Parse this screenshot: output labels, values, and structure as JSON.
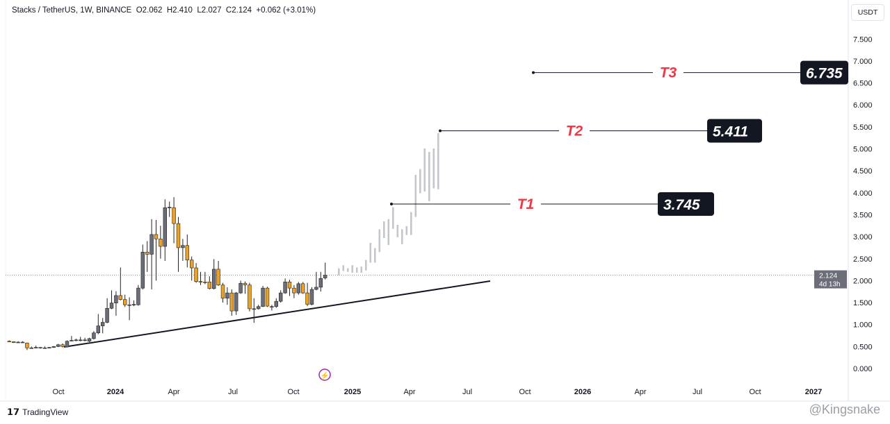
{
  "header": {
    "symbol": "Stacks / TetherUS, 1W, BINANCE",
    "open": "O2.062",
    "high": "H2.410",
    "low": "L2.027",
    "close": "C2.124",
    "change": "+0.062 (+3.01%)"
  },
  "currency_button": "USDT",
  "footer": {
    "brand": "TradingView",
    "watermark": "@Kingsnake"
  },
  "colors": {
    "up": "#6b6e78",
    "down": "#f0a020",
    "ghost": "#c3c6cc",
    "target": "#f23645",
    "label_bg": "#131722"
  },
  "chart_data": {
    "type": "candlestick",
    "ylim": [
      -0.3,
      7.8
    ],
    "yticks": [
      "0.000",
      "0.500",
      "1.000",
      "1.500",
      "2.000",
      "2.500",
      "3.000",
      "3.500",
      "4.000",
      "4.500",
      "5.000",
      "5.500",
      "6.000",
      "6.500",
      "7.000",
      "7.500"
    ],
    "xticks": [
      {
        "label": "Oct",
        "bold": false
      },
      {
        "label": "2024",
        "bold": true
      },
      {
        "label": "Apr",
        "bold": false
      },
      {
        "label": "Jul",
        "bold": false
      },
      {
        "label": "Oct",
        "bold": false
      },
      {
        "label": "2025",
        "bold": true
      },
      {
        "label": "Apr",
        "bold": false
      },
      {
        "label": "Jul",
        "bold": false
      },
      {
        "label": "Oct",
        "bold": false
      },
      {
        "label": "2026",
        "bold": true
      },
      {
        "label": "Apr",
        "bold": false
      },
      {
        "label": "Jul",
        "bold": false
      },
      {
        "label": "Oct",
        "bold": false
      },
      {
        "label": "2027",
        "bold": true
      }
    ],
    "last_price": {
      "value": "2.124",
      "countdown": "4d 13h"
    },
    "candles_ohlc": [
      [
        0.62,
        0.64,
        0.6,
        0.61
      ],
      [
        0.61,
        0.62,
        0.58,
        0.59
      ],
      [
        0.59,
        0.62,
        0.58,
        0.6
      ],
      [
        0.6,
        0.62,
        0.59,
        0.6
      ],
      [
        0.58,
        0.59,
        0.42,
        0.47
      ],
      [
        0.47,
        0.5,
        0.45,
        0.47
      ],
      [
        0.47,
        0.52,
        0.46,
        0.48
      ],
      [
        0.48,
        0.49,
        0.45,
        0.47
      ],
      [
        0.47,
        0.5,
        0.45,
        0.47
      ],
      [
        0.47,
        0.49,
        0.46,
        0.48
      ],
      [
        0.48,
        0.51,
        0.47,
        0.5
      ],
      [
        0.5,
        0.56,
        0.49,
        0.54
      ],
      [
        0.54,
        0.57,
        0.48,
        0.5
      ],
      [
        0.49,
        0.64,
        0.48,
        0.62
      ],
      [
        0.63,
        0.74,
        0.62,
        0.64
      ],
      [
        0.64,
        0.68,
        0.62,
        0.65
      ],
      [
        0.64,
        0.72,
        0.62,
        0.65
      ],
      [
        0.65,
        0.7,
        0.62,
        0.65
      ],
      [
        0.62,
        0.7,
        0.6,
        0.68
      ],
      [
        0.68,
        0.85,
        0.66,
        0.81
      ],
      [
        0.81,
        1.24,
        0.78,
        0.97
      ],
      [
        0.97,
        1.15,
        0.8,
        1.05
      ],
      [
        1.05,
        1.6,
        1.03,
        1.37
      ],
      [
        1.37,
        1.78,
        1.35,
        1.49
      ],
      [
        1.49,
        1.76,
        1.2,
        1.66
      ],
      [
        1.66,
        2.3,
        1.55,
        1.57
      ],
      [
        1.57,
        1.68,
        1.4,
        1.45
      ],
      [
        1.45,
        1.62,
        1.1,
        1.45
      ],
      [
        1.45,
        1.55,
        1.42,
        1.46
      ],
      [
        1.45,
        1.9,
        1.43,
        1.83
      ],
      [
        1.83,
        2.82,
        1.8,
        2.65
      ],
      [
        2.65,
        2.9,
        2.2,
        2.6
      ],
      [
        2.6,
        3.4,
        1.8,
        3.05
      ],
      [
        3.05,
        3.38,
        2.0,
        2.95
      ],
      [
        2.95,
        3.25,
        2.5,
        2.78
      ],
      [
        2.78,
        3.85,
        2.45,
        3.66
      ],
      [
        3.66,
        3.8,
        3.45,
        3.67
      ],
      [
        3.66,
        3.9,
        2.85,
        3.3
      ],
      [
        3.3,
        3.45,
        2.2,
        2.75
      ],
      [
        2.75,
        2.95,
        2.45,
        2.8
      ],
      [
        2.8,
        3.05,
        2.3,
        2.47
      ],
      [
        2.47,
        2.55,
        2.0,
        2.29
      ],
      [
        2.29,
        2.4,
        1.95,
        1.98
      ],
      [
        1.98,
        2.2,
        1.9,
        1.97
      ],
      [
        1.97,
        2.2,
        1.92,
        1.96
      ],
      [
        1.97,
        2.1,
        1.8,
        1.82
      ],
      [
        1.82,
        2.49,
        1.8,
        2.26
      ],
      [
        2.26,
        2.45,
        1.88,
        1.9
      ],
      [
        1.9,
        1.95,
        1.5,
        1.6
      ],
      [
        1.6,
        1.85,
        1.45,
        1.72
      ],
      [
        1.72,
        1.8,
        1.2,
        1.31
      ],
      [
        1.31,
        1.74,
        1.22,
        1.72
      ],
      [
        1.72,
        2.0,
        1.7,
        1.94
      ],
      [
        1.94,
        1.98,
        1.7,
        1.9
      ],
      [
        1.9,
        1.95,
        1.3,
        1.36
      ],
      [
        1.36,
        1.6,
        1.04,
        1.36
      ],
      [
        1.36,
        1.45,
        1.34,
        1.41
      ],
      [
        1.41,
        1.88,
        1.4,
        1.83
      ],
      [
        1.83,
        1.86,
        1.4,
        1.42
      ],
      [
        1.41,
        1.45,
        1.32,
        1.41
      ],
      [
        1.41,
        1.6,
        1.38,
        1.53
      ],
      [
        1.53,
        1.78,
        1.5,
        1.72
      ],
      [
        1.72,
        2.05,
        1.7,
        1.97
      ],
      [
        1.97,
        2.02,
        1.65,
        1.83
      ],
      [
        1.83,
        1.9,
        1.6,
        1.72
      ],
      [
        1.72,
        1.97,
        1.68,
        1.93
      ],
      [
        1.93,
        1.97,
        1.7,
        1.72
      ],
      [
        1.72,
        1.95,
        1.42,
        1.46
      ],
      [
        1.46,
        1.85,
        1.44,
        1.8
      ],
      [
        1.8,
        2.2,
        1.78,
        1.85
      ],
      [
        1.85,
        2.2,
        1.75,
        2.05
      ],
      [
        2.062,
        2.41,
        2.027,
        2.124
      ]
    ],
    "projection_bars_hl": [
      [
        2.28,
        2.12
      ],
      [
        2.35,
        2.22
      ],
      [
        2.28,
        2.2
      ],
      [
        2.35,
        2.18
      ],
      [
        2.3,
        2.18
      ],
      [
        2.32,
        2.18
      ],
      [
        2.47,
        2.23
      ],
      [
        2.86,
        2.41
      ],
      [
        2.74,
        2.41
      ],
      [
        3.17,
        2.65
      ],
      [
        3.35,
        2.97
      ],
      [
        3.4,
        2.81
      ],
      [
        3.67,
        3.18
      ],
      [
        3.27,
        2.99
      ],
      [
        3.17,
        2.83
      ],
      [
        3.24,
        3.04
      ],
      [
        3.56,
        3.04
      ],
      [
        4.41,
        3.45
      ],
      [
        4.54,
        3.99
      ],
      [
        5.01,
        4.03
      ],
      [
        4.93,
        3.81
      ],
      [
        5.01,
        4.1
      ],
      [
        5.36,
        4.08
      ]
    ],
    "trendline": {
      "from": [
        0.49,
        "2023-10"
      ],
      "to": [
        1.99,
        "2025-08"
      ]
    },
    "targets": [
      {
        "name": "T1",
        "value": "3.745"
      },
      {
        "name": "T2",
        "value": "5.411"
      },
      {
        "name": "T3",
        "value": "6.735"
      }
    ]
  }
}
